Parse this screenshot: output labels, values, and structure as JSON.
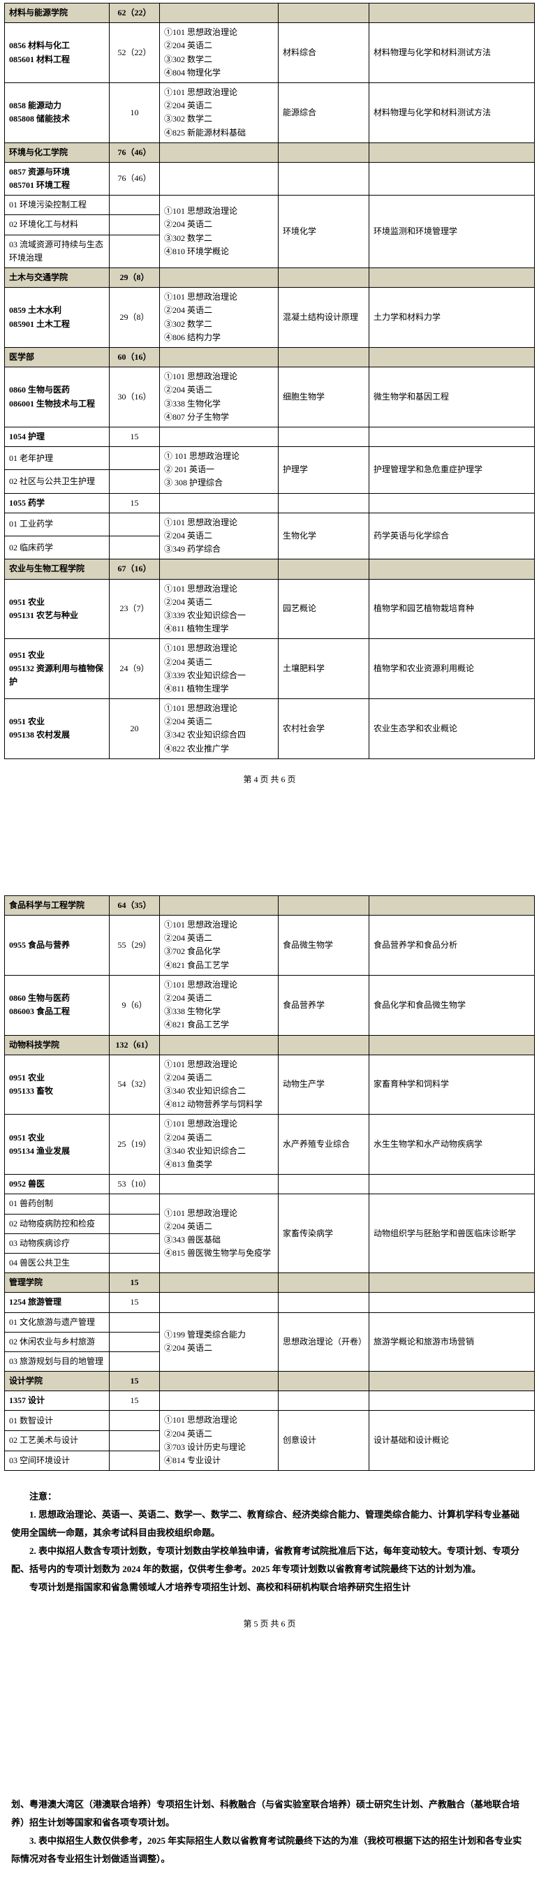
{
  "footer_p4": "第 4 页 共 6 页",
  "footer_p5": "第 5 页 共 6 页",
  "page4": {
    "s1": {
      "name": "材料与能源学院",
      "count": "62（22）"
    },
    "r1": {
      "col1a": "0856 材料与化工",
      "col1b": "085601 材料工程",
      "count": "52（22）",
      "e1": "①101 思想政治理论",
      "e2": "②204 英语二",
      "e3": "③302 数学二",
      "e4": "④804 物理化学",
      "c4": "材料综合",
      "c5": "材料物理与化学和材料测试方法"
    },
    "r2": {
      "col1a": "0858 能源动力",
      "col1b": "085808 储能技术",
      "count": "10",
      "e1": "①101 思想政治理论",
      "e2": "②204 英语二",
      "e3": "③302 数学二",
      "e4": "④825 新能源材料基础",
      "c4": "能源综合",
      "c5": "材料物理与化学和材料测试方法"
    },
    "s2": {
      "name": "环境与化工学院",
      "count": "76（46）"
    },
    "r3": {
      "col1a": "0857 资源与环境",
      "col1b": "085701 环境工程",
      "count": "76（46）"
    },
    "r4a": {
      "c1": "01 环境污染控制工程"
    },
    "r4b": {
      "c1": "02 环境化工与材料"
    },
    "r4c": {
      "c1": "03 流域资源可持续与生态环境治理"
    },
    "r4exam": {
      "e1": "①101 思想政治理论",
      "e2": "②204 英语二",
      "e3": "③302 数学二",
      "e4": "④810 环境学概论",
      "c4": "环境化学",
      "c5": "环境监测和环境管理学"
    },
    "s3": {
      "name": "土木与交通学院",
      "count": "29（8）"
    },
    "r5": {
      "col1a": "0859 土木水利",
      "col1b": "085901 土木工程",
      "count": "29（8）",
      "e1": "①101 思想政治理论",
      "e2": "②204 英语二",
      "e3": "③302 数学二",
      "e4": "④806 结构力学",
      "c4": "混凝土结构设计原理",
      "c5": "土力学和材料力学"
    },
    "s4": {
      "name": "医学部",
      "count": "60（16）"
    },
    "r6": {
      "col1a": "0860 生物与医药",
      "col1b": "086001 生物技术与工程",
      "count": "30（16）",
      "e1": "①101 思想政治理论",
      "e2": "②204 英语二",
      "e3": "③338 生物化学",
      "e4": "④807 分子生物学",
      "c4": "细胞生物学",
      "c5": "微生物学和基因工程"
    },
    "r7": {
      "col1": "1054 护理",
      "count": "15"
    },
    "r7a": {
      "c1": "01 老年护理"
    },
    "r7b": {
      "c1": "02 社区与公共卫生护理"
    },
    "r7exam": {
      "e1": "① 101 思想政治理论",
      "e2": "② 201 英语一",
      "e3": "③ 308 护理综合",
      "c4": "护理学",
      "c5": "护理管理学和急危重症护理学"
    },
    "r8": {
      "col1": "1055 药学",
      "count": "15"
    },
    "r8a": {
      "c1": "01 工业药学"
    },
    "r8b": {
      "c1": "02 临床药学"
    },
    "r8exam": {
      "e1": "①101 思想政治理论",
      "e2": "②204 英语二",
      "e3": "③349 药学综合",
      "c4": "生物化学",
      "c5": "药学英语与化学综合"
    },
    "s5": {
      "name": "农业与生物工程学院",
      "count": "67（16）"
    },
    "r9": {
      "col1a": "0951 农业",
      "col1b": "095131 农艺与种业",
      "count": "23（7）",
      "e1": "①101 思想政治理论",
      "e2": "②204 英语二",
      "e3": "③339 农业知识综合一",
      "e4": "④811 植物生理学",
      "c4": "园艺概论",
      "c5": "植物学和园艺植物栽培育种"
    },
    "r10": {
      "col1a": "0951 农业",
      "col1b": "095132 资源利用与植物保护",
      "count": "24（9）",
      "e1": "①101 思想政治理论",
      "e2": "②204 英语二",
      "e3": "③339 农业知识综合一",
      "e4": "④811 植物生理学",
      "c4": "土壤肥料学",
      "c5": "植物学和农业资源利用概论"
    },
    "r11": {
      "col1a": "0951 农业",
      "col1b": "095138 农村发展",
      "count": "20",
      "e1": "①101 思想政治理论",
      "e2": "②204 英语二",
      "e3": "③342 农业知识综合四",
      "e4": "④822 农业推广学",
      "c4": "农村社会学",
      "c5": "农业生态学和农业概论"
    }
  },
  "page5": {
    "s6": {
      "name": "食品科学与工程学院",
      "count": "64（35）"
    },
    "r12": {
      "col1": "0955 食品与营养",
      "count": "55（29）",
      "e1": "①101 思想政治理论",
      "e2": "②204 英语二",
      "e3": "③702 食品化学",
      "e4": "④821 食品工艺学",
      "c4": "食品微生物学",
      "c5": "食品营养学和食品分析"
    },
    "r13": {
      "col1a": "0860 生物与医药",
      "col1b": "086003 食品工程",
      "count": "9（6）",
      "e1": "①101 思想政治理论",
      "e2": "②204 英语二",
      "e3": "③338 生物化学",
      "e4": "④821 食品工艺学",
      "c4": "食品营养学",
      "c5": "食品化学和食品微生物学"
    },
    "s7": {
      "name": "动物科技学院",
      "count": "132（61）"
    },
    "r14": {
      "col1a": "0951 农业",
      "col1b": "095133 畜牧",
      "count": "54（32）",
      "e1": "①101 思想政治理论",
      "e2": "②204 英语二",
      "e3": "③340 农业知识综合二",
      "e4": "④812 动物营养学与饲料学",
      "c4": "动物生产学",
      "c5": "家畜育种学和饲料学"
    },
    "r15": {
      "col1a": "0951 农业",
      "col1b": "095134 渔业发展",
      "count": "25（19）",
      "e1": "①101 思想政治理论",
      "e2": "②204 英语二",
      "e3": "③340 农业知识综合二",
      "e4": "④813 鱼类学",
      "c4": "水产养殖专业综合",
      "c5": "水生生物学和水产动物疾病学"
    },
    "r16": {
      "col1": "0952 兽医",
      "count": "53（10）"
    },
    "r16a": {
      "c1": "01 兽药创制"
    },
    "r16b": {
      "c1": "02 动物疫病防控和检疫"
    },
    "r16c": {
      "c1": "03 动物疾病诊疗"
    },
    "r16d": {
      "c1": "04 兽医公共卫生"
    },
    "r16exam": {
      "e1": "①101 思想政治理论",
      "e2": "②204 英语二",
      "e3": "③343 兽医基础",
      "e4": "④815 兽医微生物学与免疫学",
      "c4": "家畜传染病学",
      "c5": "动物组织学与胚胎学和兽医临床诊断学"
    },
    "s8": {
      "name": "管理学院",
      "count": "15"
    },
    "r17": {
      "col1": "1254 旅游管理",
      "count": "15"
    },
    "r17a": {
      "c1": "01 文化旅游与遗产管理"
    },
    "r17b": {
      "c1": "02 休闲农业与乡村旅游"
    },
    "r17c": {
      "c1": "03 旅游规划与目的地管理"
    },
    "r17exam": {
      "e1": "①199 管理类综合能力",
      "e2": "②204 英语二",
      "c4": "思想政治理论（开卷）",
      "c5": "旅游学概论和旅游市场营销"
    },
    "s9": {
      "name": "设计学院",
      "count": "15"
    },
    "r18": {
      "col1": "1357 设计",
      "count": "15"
    },
    "r18a": {
      "c1": "01 数智设计"
    },
    "r18b": {
      "c1": "02 工艺美术与设计"
    },
    "r18c": {
      "c1": "03 空间环境设计"
    },
    "r18exam": {
      "e1": "①101 思想政治理论",
      "e2": "②204 英语二",
      "e3": "③703 设计历史与理论",
      "e4": "④814 专业设计",
      "c4": "创意设计",
      "c5": "设计基础和设计概论"
    }
  },
  "notes": {
    "title": "注意：",
    "n1": "1. 思想政治理论、英语一、英语二、数学一、数学二、教育综合、经济类综合能力、管理类综合能力、计算机学科专业基础使用全国统一命题，其余考试科目由我校组织命题。",
    "n2": "2. 表中拟招人数含专项计划数，专项计划数由学校单独申请，省教育考试院批准后下达，每年变动较大。专项计划、专项分配、括号内的专项计划数为 2024 年的数据，仅供考生参考。2025 年专项计划数以省教育考试院最终下达的计划为准。",
    "n3": "专项计划是指国家和省急需领域人才培养专项招生计划、高校和科研机构联合培养研究生招生计"
  },
  "post": {
    "p1": "划、粤港澳大湾区（港澳联合培养）专项招生计划、科教融合（与省实验室联合培养）硕士研究生计划、产教融合（基地联合培养）招生计划等国家和省各项专项计划。",
    "p2": "3. 表中拟招生人数仅供参考，2025 年实际招生人数以省教育考试院最终下达的为准（我校可根据下达的招生计划和各专业实际情况对各专业招生计划做适当调整）。"
  }
}
